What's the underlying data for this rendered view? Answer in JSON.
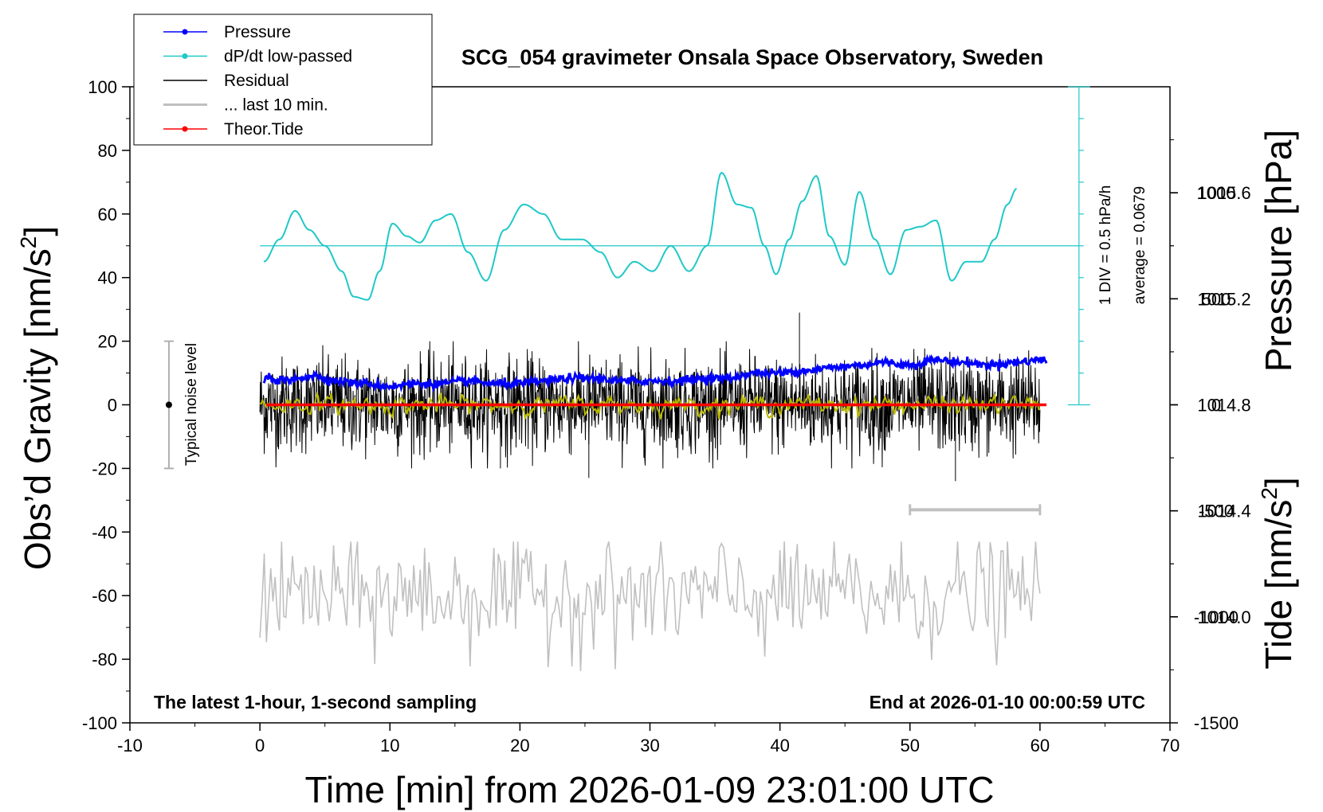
{
  "chart_data": {
    "type": "line",
    "title": "SCG_054 gravimeter Onsala Space Observatory, Sweden",
    "xlabel": "Time [min] from 2026-01-09 23:01:00 UTC",
    "ylabel_left_main": "Obs’d Gravity [nm/s",
    "ylabel_left_sup": "2",
    "ylabel_left_end": "]",
    "ylabel_right_pressure": "Pressure [hPa]",
    "ylabel_right_tide_main": "Tide [nm/s",
    "ylabel_right_tide_sup": "2",
    "ylabel_right_tide_end": "]",
    "xlim": [
      -10,
      70
    ],
    "ylim": [
      -100,
      100
    ],
    "pressure_ylim": [
      1013.6,
      1016.0
    ],
    "tide_ylim": [
      -1500,
      1500
    ],
    "x_ticks": [
      "-10",
      "0",
      "10",
      "20",
      "30",
      "40",
      "50",
      "60",
      "70"
    ],
    "y_ticks": [
      "-100",
      "-80",
      "-60",
      "-40",
      "-20",
      "0",
      "20",
      "40",
      "60",
      "80",
      "100"
    ],
    "pressure_ticks": [
      "1014.0",
      "1014.4",
      "1014.8",
      "1015.2",
      "1015.6"
    ],
    "tide_ticks": [
      "-1500",
      "-1000",
      "-500",
      "0",
      "500",
      "1000"
    ],
    "legend": [
      {
        "label": "Pressure",
        "color": "#0000ff",
        "style": "line-dot"
      },
      {
        "label": "dP/dt low-passed",
        "color": "#20c8c8",
        "style": "line-dot"
      },
      {
        "label": "Residual",
        "color": "#000000",
        "style": "line"
      },
      {
        "label": "... last 10 min.",
        "color": "#c0c0c0",
        "style": "line"
      },
      {
        "label": "Theor.Tide",
        "color": "#ff0000",
        "style": "line-dot"
      }
    ],
    "note_left": "The latest 1-hour, 1-second sampling",
    "note_right": "End at 2026-01-10 00:00:59 UTC",
    "noise_label": "Typical noise level",
    "noise_bar": {
      "x": -7,
      "center": 0,
      "half_range": 20
    },
    "dpdt_scale_label": "1 DIV = 0.5 hPa/h",
    "dpdt_average_label": "average = 0.0679",
    "dpdt_scale_axis": {
      "x": 63,
      "ymin": 0,
      "ymax": 100,
      "baseline": 50
    },
    "last10_bar": {
      "x0": 50,
      "x1": 60,
      "y": -33
    },
    "series": [
      {
        "name": "Pressure",
        "axis": "pressure",
        "color": "#0000ff",
        "x": [
          0.3,
          2,
          4,
          6,
          8,
          10,
          12,
          14,
          16,
          18,
          20,
          22,
          24,
          26,
          28,
          30,
          32,
          34,
          36,
          38,
          40,
          42,
          44,
          46,
          48,
          50,
          52,
          54,
          56,
          58,
          60,
          60.5
        ],
        "y": [
          1014.9,
          1014.89,
          1014.91,
          1014.89,
          1014.88,
          1014.87,
          1014.88,
          1014.88,
          1014.89,
          1014.88,
          1014.88,
          1014.89,
          1014.9,
          1014.9,
          1014.89,
          1014.89,
          1014.89,
          1014.9,
          1014.9,
          1014.92,
          1014.92,
          1014.93,
          1014.94,
          1014.95,
          1014.96,
          1014.95,
          1014.97,
          1014.96,
          1014.95,
          1014.96,
          1014.97,
          1014.97
        ]
      },
      {
        "name": "dP/dt low-passed",
        "axis": "left",
        "color": "#20c8c8",
        "x": [
          0.3,
          1.5,
          2.7,
          3.8,
          5,
          6.3,
          7.2,
          8.3,
          9.2,
          10.2,
          11.3,
          12.3,
          13.5,
          14.7,
          16,
          17.4,
          18.8,
          20.3,
          21.8,
          23.2,
          24.8,
          26.2,
          27.5,
          28.8,
          30.2,
          31.6,
          33,
          34.4,
          35.5,
          36.7,
          37.8,
          38.8,
          39.7,
          40.7,
          41.7,
          42.8,
          43.8,
          45,
          46.1,
          47.3,
          48.5,
          49.7,
          50.8,
          52,
          53.2,
          54.3,
          55.5,
          56.5,
          57.5,
          58.2
        ],
        "y": [
          45,
          52,
          61,
          55,
          50,
          42,
          34,
          33,
          42,
          57,
          53,
          51,
          58,
          60,
          48,
          39,
          55,
          63,
          60,
          52,
          52,
          48,
          40,
          45,
          42,
          50,
          42,
          50,
          73,
          63,
          62,
          50,
          41,
          52,
          64,
          72,
          53,
          44,
          67,
          52,
          41,
          55,
          56,
          58,
          39,
          45,
          45,
          52,
          63,
          68
        ]
      },
      {
        "name": "Residual",
        "axis": "left",
        "color": "#000000",
        "x_start": 0,
        "x_end": 60,
        "std": 7.5,
        "peaks": [
          [
            41.5,
            29
          ],
          [
            25.3,
            -23
          ],
          [
            53.5,
            -24
          ],
          [
            18.5,
            -20
          ]
        ]
      },
      {
        "name": "Residual running mean",
        "axis": "left",
        "color": "#b8b800",
        "x_start": 0,
        "x_end": 60,
        "std": 1.2
      },
      {
        "name": "... last 10 min.",
        "axis": "left",
        "color": "#c0c0c0",
        "x_start": 0,
        "x_end": 60,
        "center": -60,
        "std": 9,
        "lims": [
          -87,
          -43
        ]
      },
      {
        "name": "Theor.Tide",
        "axis": "tide",
        "color": "#ff0000",
        "x": [
          0.5,
          60.5
        ],
        "y": [
          0,
          0
        ]
      }
    ]
  }
}
